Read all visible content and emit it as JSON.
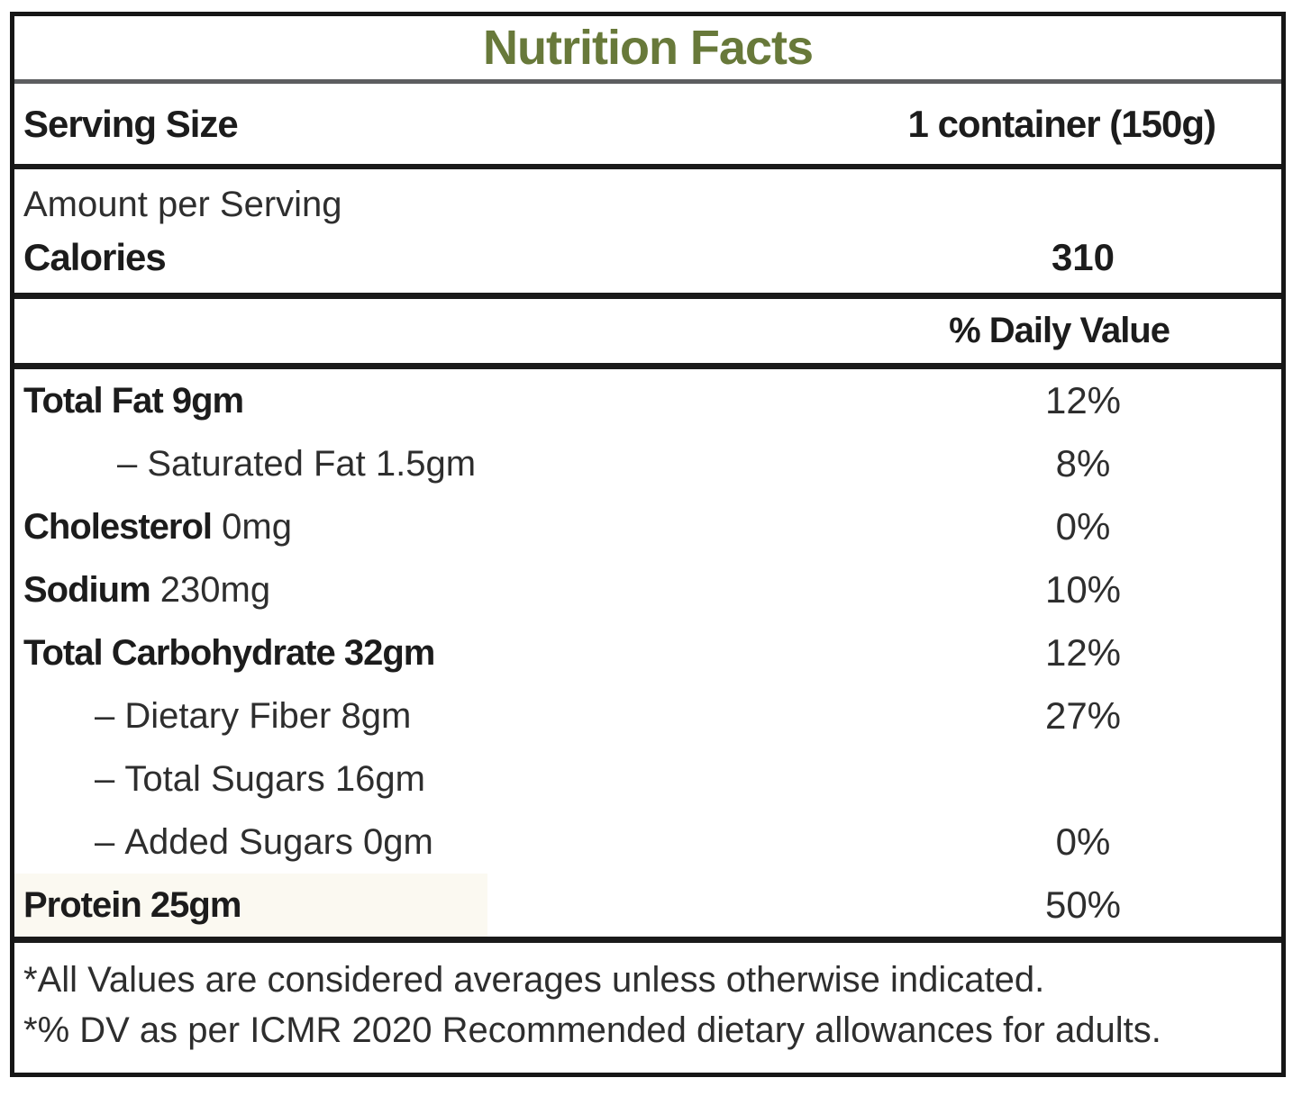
{
  "nutrition_label": {
    "title": "Nutrition Facts",
    "serving_size": {
      "label": "Serving Size",
      "value": "1 container (150g)"
    },
    "amount_per_serving_heading": "Amount per Serving",
    "calories": {
      "label": "Calories",
      "value": "310"
    },
    "daily_value_header": "% Daily Value",
    "nutrients": [
      {
        "prefix": "",
        "name": "Total Fat",
        "amount": "9gm",
        "daily_value": "12%"
      },
      {
        "prefix": "–",
        "name": "Saturated Fat",
        "amount": "1.5gm",
        "daily_value": "8%"
      },
      {
        "prefix": "",
        "name": "Cholesterol",
        "amount": "0mg",
        "daily_value": "0%"
      },
      {
        "prefix": "",
        "name": "Sodium",
        "amount": "230mg",
        "daily_value": "10%"
      },
      {
        "prefix": "",
        "name": "Total Carbohydrate",
        "amount": "32gm",
        "daily_value": "12%"
      },
      {
        "prefix": "–",
        "name": "Dietary Fiber",
        "amount": "8gm",
        "daily_value": "27%"
      },
      {
        "prefix": "–",
        "name": "Total Sugars",
        "amount": "16gm",
        "daily_value": ""
      },
      {
        "prefix": "–",
        "name": "Added Sugars",
        "amount": "0gm",
        "daily_value": "0%"
      },
      {
        "prefix": "",
        "name": "Protein",
        "amount": "25gm",
        "daily_value": "50%"
      }
    ],
    "footnotes": [
      "*All Values are considered averages unless otherwise indicated.",
      "*% DV as per ICMR 2020 Recommended dietary allowances for adults."
    ],
    "colors": {
      "title_green": "#68793a",
      "divider_gray": "#5d5e60",
      "border_black": "#161616",
      "protein_highlight": "#fbf9f1"
    }
  }
}
